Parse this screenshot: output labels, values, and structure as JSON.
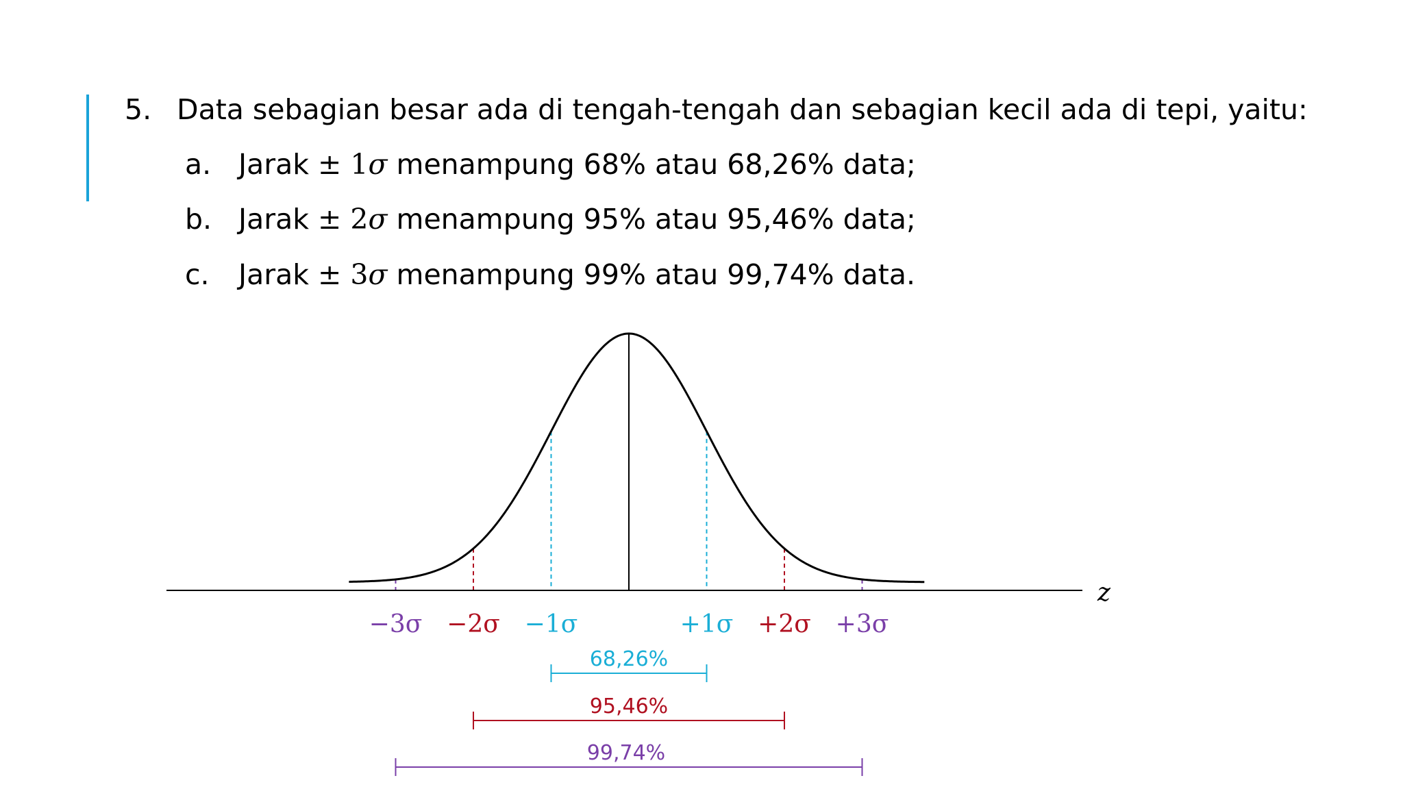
{
  "slide": {
    "heading_number": "5.",
    "heading_text": "Data sebagian besar ada di tengah-tengah dan sebagian kecil ada di tepi, yaitu:",
    "items": [
      {
        "marker": "a.",
        "prefix": "Jarak ",
        "pm": "±",
        "k": "1",
        "sigma": "σ",
        "suffix": " menampung 68% atau 68,26% data;"
      },
      {
        "marker": "b.",
        "prefix": "Jarak ",
        "pm": "±",
        "k": "2",
        "sigma": "σ",
        "suffix": " menampung 95% atau 95,46% data;"
      },
      {
        "marker": "c.",
        "prefix": "Jarak ",
        "pm": "±",
        "k": "3",
        "sigma": "σ",
        "suffix": " menampung 99% atau 99,74% data."
      }
    ]
  },
  "colors": {
    "accent": "#1aa3d9",
    "sigma1": "#1aaed6",
    "sigma2": "#b01020",
    "sigma3": "#7a3fa8",
    "curve": "#000000"
  },
  "chart_data": {
    "type": "line",
    "axis_label": "z",
    "x_range": [
      -3.6,
      3.8
    ],
    "sigma_lines": [
      {
        "z": -3,
        "label": "−3σ",
        "color": "#7a3fa8"
      },
      {
        "z": -2,
        "label": "−2σ",
        "color": "#b01020"
      },
      {
        "z": -1,
        "label": "−1σ",
        "color": "#1aaed6"
      },
      {
        "z": 1,
        "label": "+1σ",
        "color": "#1aaed6"
      },
      {
        "z": 2,
        "label": "+2σ",
        "color": "#b01020"
      },
      {
        "z": 3,
        "label": "+3σ",
        "color": "#7a3fa8"
      }
    ],
    "intervals": [
      {
        "from": -1,
        "to": 1,
        "label": "68,26%",
        "color": "#1aaed6"
      },
      {
        "from": -2,
        "to": 2,
        "label": "95,46%",
        "color": "#b01020"
      },
      {
        "from": -3,
        "to": 3,
        "label": "99,74%",
        "color": "#7a3fa8"
      }
    ]
  }
}
